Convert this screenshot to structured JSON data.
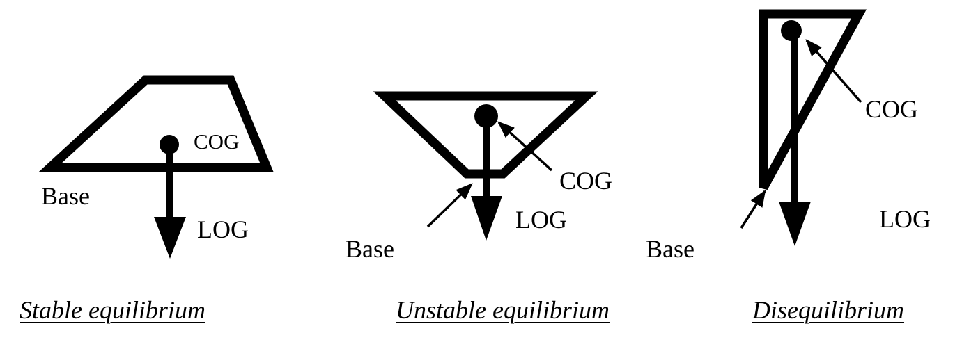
{
  "panels": [
    {
      "caption": "Stable equilibrium",
      "labels": {
        "base": "Base",
        "cog": "COG",
        "log": "LOG"
      }
    },
    {
      "caption": "Unstable equilibrium",
      "labels": {
        "base": "Base",
        "cog": "COG",
        "log": "LOG"
      }
    },
    {
      "caption": "Disequilibrium",
      "labels": {
        "base": "Base",
        "cog": "COG",
        "log": "LOG"
      }
    }
  ],
  "colors": {
    "ink": "#000000",
    "background": "#ffffff"
  }
}
